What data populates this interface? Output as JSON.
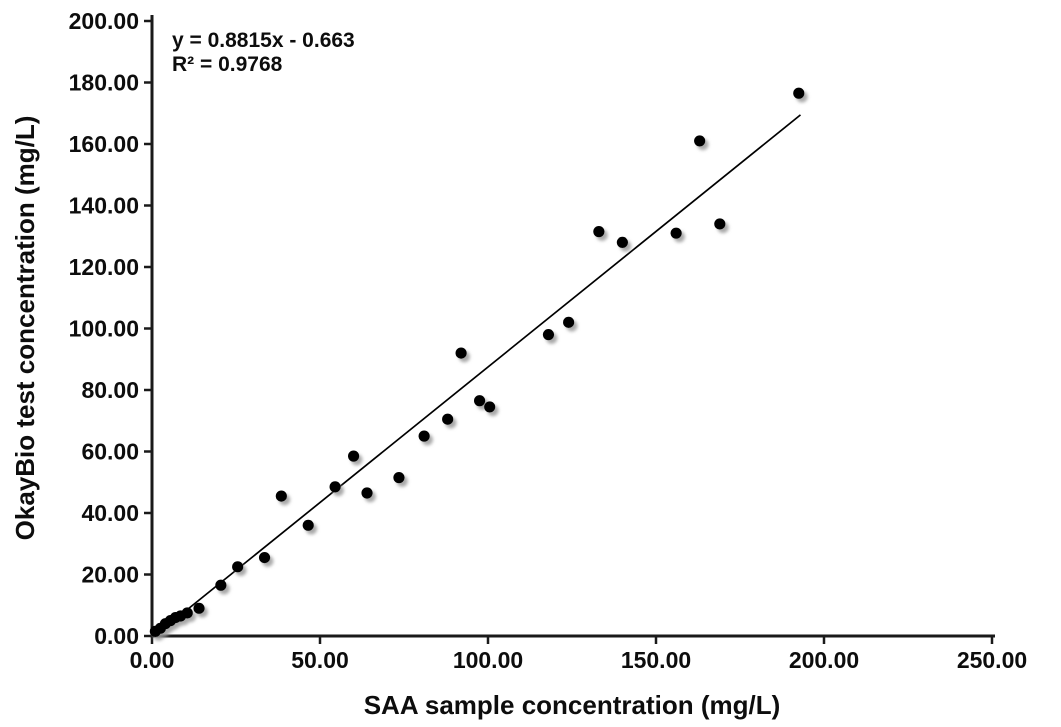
{
  "figure": {
    "background_color": "#ffffff",
    "text_color": "#0d0d0d",
    "axis_color": "#1a1a1a",
    "marker_shadow_color": "#9a9a9a"
  },
  "chart_data": {
    "type": "scatter",
    "title": "",
    "xlabel": "SAA sample concentration (mg/L)",
    "ylabel": "OkayBio test concentration (mg/L)",
    "xlim": [
      0,
      250
    ],
    "ylim": [
      0,
      200
    ],
    "grid": false,
    "legend": false,
    "marker_color": "#000000",
    "x_tick_values": [
      0,
      50,
      100,
      150,
      200,
      250
    ],
    "x_tick_labels": [
      "0.00",
      "50.00",
      "100.00",
      "150.00",
      "200.00",
      "250.00"
    ],
    "y_tick_values": [
      0,
      20,
      40,
      60,
      80,
      100,
      120,
      140,
      160,
      180,
      200
    ],
    "y_tick_labels": [
      "0.00",
      "20.00",
      "40.00",
      "60.00",
      "80.00",
      "100.00",
      "120.00",
      "140.00",
      "160.00",
      "180.00",
      "200.00"
    ],
    "series": [
      {
        "name": "samples",
        "points": [
          [
            1.0,
            1.5
          ],
          [
            2.5,
            2.5
          ],
          [
            4.0,
            4.0
          ],
          [
            5.5,
            5.0
          ],
          [
            7.0,
            6.0
          ],
          [
            8.5,
            6.5
          ],
          [
            10.5,
            7.5
          ],
          [
            14.0,
            9.0
          ],
          [
            20.5,
            16.5
          ],
          [
            25.5,
            22.5
          ],
          [
            33.5,
            25.5
          ],
          [
            38.5,
            45.5
          ],
          [
            46.5,
            36.0
          ],
          [
            54.5,
            48.5
          ],
          [
            60.0,
            58.5
          ],
          [
            64.0,
            46.5
          ],
          [
            73.5,
            51.5
          ],
          [
            81.0,
            65.0
          ],
          [
            88.0,
            70.5
          ],
          [
            92.0,
            92.0
          ],
          [
            97.5,
            76.5
          ],
          [
            100.5,
            74.5
          ],
          [
            118.0,
            98.0
          ],
          [
            124.0,
            102.0
          ],
          [
            133.0,
            131.5
          ],
          [
            140.0,
            128.0
          ],
          [
            156.0,
            131.0
          ],
          [
            163.0,
            161.0
          ],
          [
            169.0,
            134.0
          ],
          [
            192.5,
            176.5
          ]
        ]
      }
    ],
    "trendline": {
      "equation_label": "y = 0.8815x - 0.663",
      "r2_label": "R² = 0.9768",
      "slope": 0.8815,
      "intercept": -0.663,
      "r_squared": 0.9768,
      "x_start": 0.75,
      "x_end": 193.0,
      "color": "#000000"
    }
  }
}
